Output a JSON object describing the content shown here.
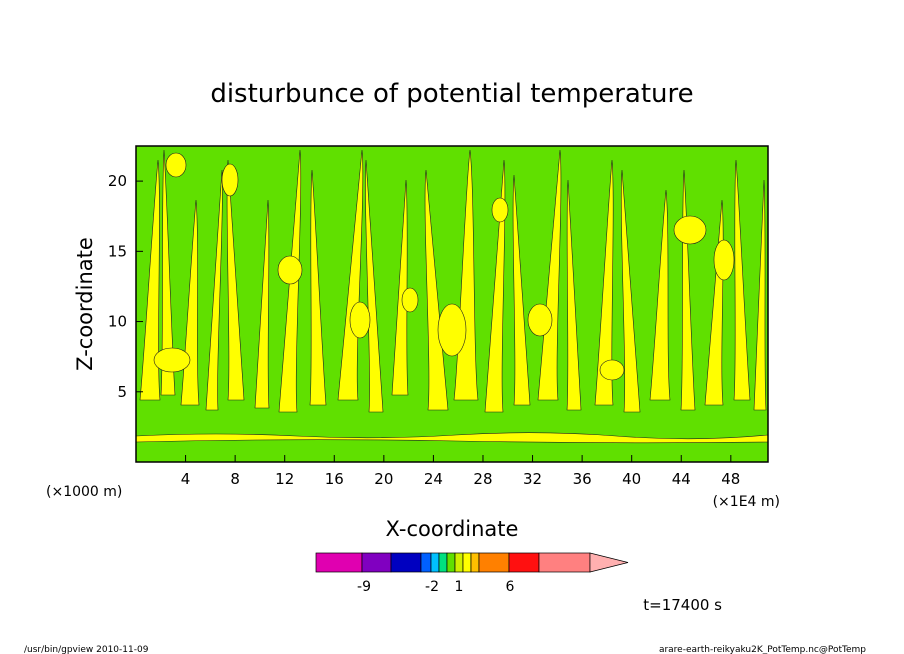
{
  "chart_data": {
    "type": "heatmap",
    "title": "disturbunce of potential temperature",
    "xlabel": "X-coordinate",
    "ylabel": "Z-coordinate",
    "x_unit_left": "(×1000 m)",
    "x_unit_right": "(×1E4 m)",
    "x_ticks": [
      4,
      8,
      12,
      16,
      20,
      24,
      28,
      32,
      36,
      40,
      44,
      48
    ],
    "y_ticks": [
      5,
      10,
      15,
      20
    ],
    "xlim": [
      0,
      51
    ],
    "ylim": [
      0,
      22.5
    ],
    "time_label": "t=17400 s",
    "colorbar": {
      "colors": [
        "#e000b0",
        "#8000c0",
        "#0000c0",
        "#0060ff",
        "#00c0ff",
        "#00e080",
        "#60e000",
        "#d0f000",
        "#ffff00",
        "#ffc000",
        "#ff8000",
        "#ff1010",
        "#ff8080"
      ],
      "extend_color": "#ffb0b0",
      "tick_labels": [
        "-9",
        "-2",
        "1",
        "6"
      ]
    },
    "field_colors": {
      "background": "#60e000",
      "positive": "#ffff00"
    },
    "grid": false,
    "legend": "bottom-center"
  },
  "footer": {
    "left": "/usr/bin/gpview  2010-11-09",
    "right": "arare-earth-reikyaku2K_PotTemp.nc@PotTemp"
  }
}
